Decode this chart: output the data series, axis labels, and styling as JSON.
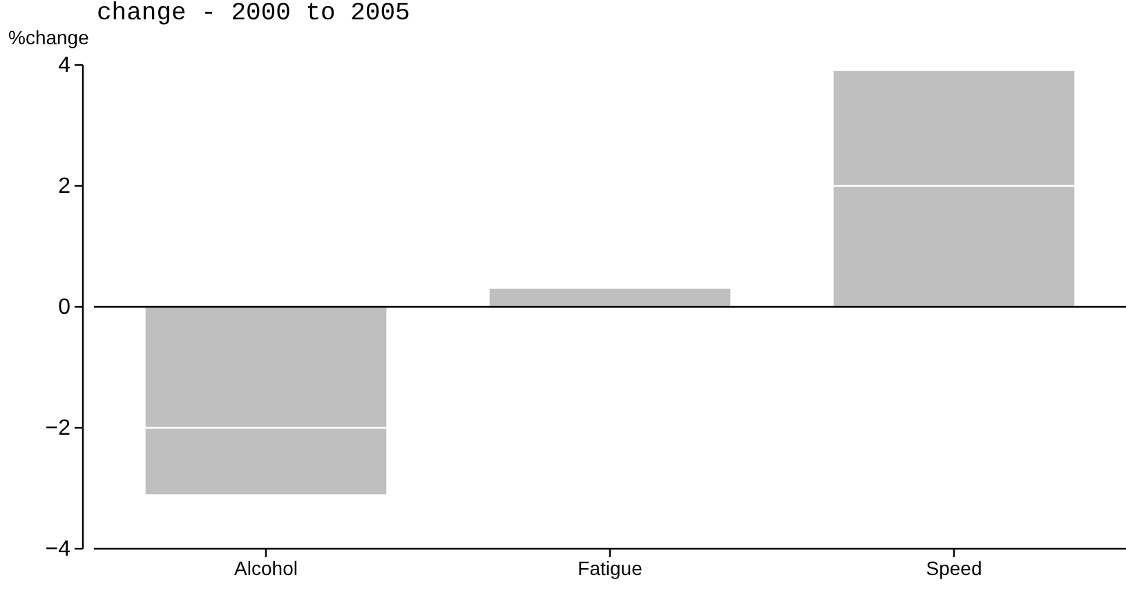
{
  "chart_data": {
    "type": "bar",
    "title": "change - 2000 to 2005",
    "ylabel": "%change",
    "categories": [
      "Alcohol",
      "Fatigue",
      "Speed"
    ],
    "values": [
      -3.1,
      0.3,
      3.9
    ],
    "color": "#bfbfbf",
    "ylim": [
      -4,
      4
    ],
    "yticks": [
      {
        "value": -4,
        "label": "−4"
      },
      {
        "value": -2,
        "label": "−2"
      },
      0,
      2,
      4
    ],
    "grid": "y",
    "ref_lines": [
      {
        "axis": "y",
        "value": 0,
        "color": "#000000"
      }
    ]
  }
}
